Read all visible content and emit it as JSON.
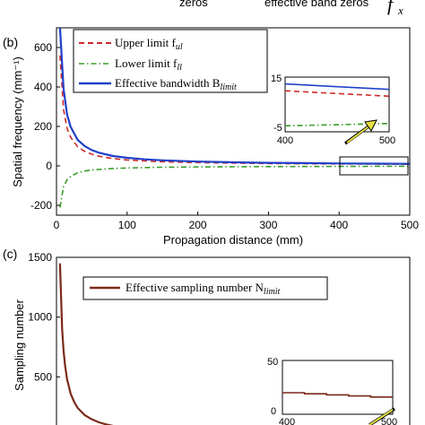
{
  "top_fragment": {
    "left": "zeros",
    "middle": "effective band  zeros",
    "symbol": "f",
    "subscript": "x"
  },
  "chart_data": [
    {
      "panel_label": "(b)",
      "type": "line",
      "xlabel": "Propagation distance (mm)",
      "ylabel": "Spatial frequency (mm⁻¹)",
      "xlim": [
        0,
        500
      ],
      "ylim": [
        -250,
        700
      ],
      "xticks": [
        "0",
        "100",
        "200",
        "300",
        "400",
        "500"
      ],
      "yticks": [
        "-200",
        "0",
        "200",
        "400",
        "600"
      ],
      "grid": false,
      "legend_position": "top-right",
      "series": [
        {
          "name": "Upper limit f",
          "name_sub": "ul",
          "color": "#cc2a2a",
          "dash": "dashed",
          "x": [
            5,
            10,
            15,
            20,
            30,
            40,
            50,
            60,
            80,
            100,
            125,
            150,
            200,
            250,
            300,
            350,
            400,
            450,
            500
          ],
          "y": [
            560,
            285,
            190,
            145,
            97,
            73,
            59,
            49,
            37,
            30,
            25,
            21,
            17,
            14,
            12,
            11,
            10,
            9,
            8
          ]
        },
        {
          "name": "Lower limit f",
          "name_sub": "ll",
          "color": "#3a9a2a",
          "dash": "dashdot",
          "x": [
            5,
            10,
            15,
            20,
            30,
            40,
            50,
            60,
            80,
            100,
            125,
            150,
            200,
            250,
            300,
            350,
            400,
            450,
            500
          ],
          "y": [
            -210,
            -105,
            -70,
            -53,
            -35,
            -26,
            -21,
            -18,
            -13,
            -11,
            -8.5,
            -7,
            -5.5,
            -4.5,
            -3.5,
            -3,
            -2.8,
            -2.4,
            -2
          ]
        },
        {
          "name": "Effective bandwidth B",
          "name_sub": "limit",
          "color": "#2040c8",
          "dash": "solid",
          "x": [
            5,
            10,
            15,
            20,
            30,
            40,
            50,
            60,
            80,
            100,
            125,
            150,
            200,
            250,
            300,
            350,
            400,
            450,
            500
          ],
          "y": [
            700,
            390,
            260,
            198,
            132,
            100,
            80,
            67,
            50,
            41,
            33,
            28,
            22,
            18,
            15.5,
            14,
            12.5,
            11.5,
            10.5
          ]
        }
      ],
      "inset": {
        "xlim": [
          400,
          500
        ],
        "ylim": [
          -5,
          15
        ],
        "xticks": [
          "400",
          "500"
        ],
        "yticks": [
          "15",
          "-5"
        ]
      }
    },
    {
      "panel_label": "(c)",
      "type": "line",
      "xlabel": "",
      "ylabel": "Sampling number",
      "xlim": [
        0,
        500
      ],
      "ylim": [
        0,
        1500
      ],
      "yticks": [
        "500",
        "1000",
        "1500"
      ],
      "grid": false,
      "legend_position": "top-right",
      "series": [
        {
          "name": "Effective sampling number N",
          "name_sub": "limit",
          "color": "#7a2a18",
          "dash": "solid",
          "x": [
            5,
            8,
            10,
            12,
            15,
            20,
            25,
            30,
            40,
            50,
            60,
            70,
            80
          ],
          "y": [
            1450,
            900,
            720,
            600,
            480,
            360,
            290,
            240,
            180,
            145,
            120,
            103,
            90
          ]
        }
      ],
      "inset": {
        "xlim": [
          400,
          500
        ],
        "ylim": [
          0,
          50
        ],
        "xticks": [
          "400",
          "500"
        ],
        "yticks": [
          "50",
          "0"
        ],
        "x": [
          400,
          420,
          420,
          440,
          440,
          460,
          460,
          480,
          480,
          500
        ],
        "y": [
          20,
          20,
          19,
          19,
          18,
          18,
          17,
          17,
          16,
          16
        ]
      }
    }
  ]
}
